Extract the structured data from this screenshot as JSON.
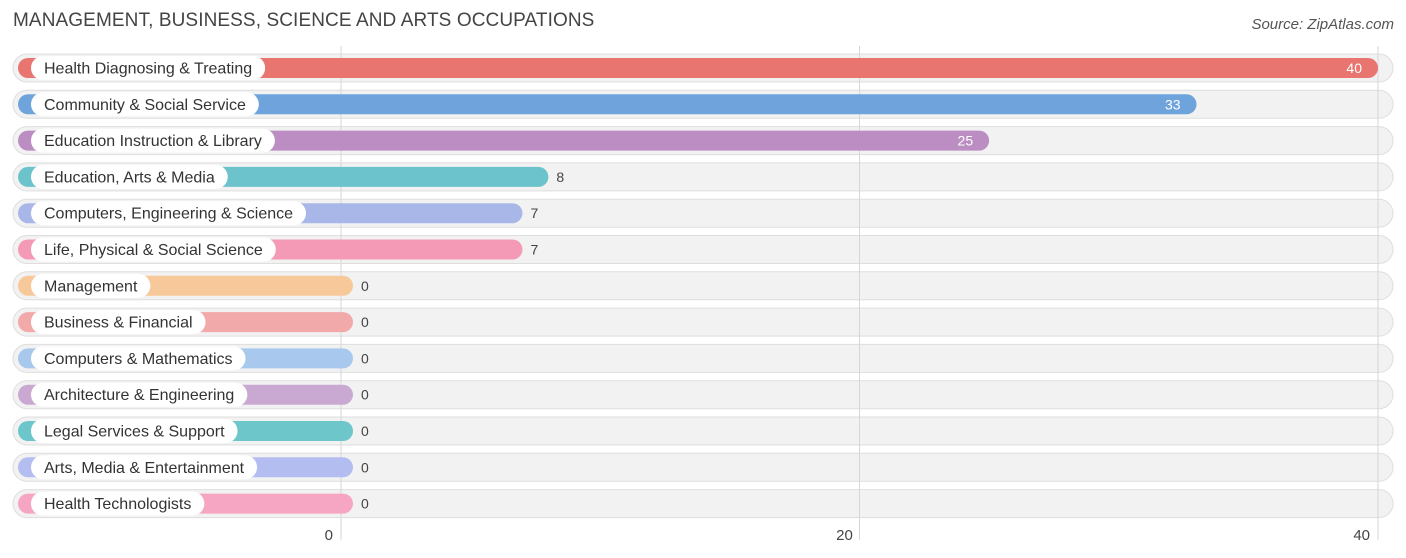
{
  "header": {
    "title": "MANAGEMENT, BUSINESS, SCIENCE AND ARTS OCCUPATIONS",
    "source": "Source: ZipAtlas.com"
  },
  "chart_data": {
    "type": "bar",
    "orientation": "horizontal",
    "title": "MANAGEMENT, BUSINESS, SCIENCE AND ARTS OCCUPATIONS",
    "xlim": [
      0,
      40
    ],
    "xticks": [
      "0",
      "20",
      "40"
    ],
    "grid": true,
    "categories": [
      "Health Diagnosing & Treating",
      "Community & Social Service",
      "Education Instruction & Library",
      "Education, Arts & Media",
      "Computers, Engineering & Science",
      "Life, Physical & Social Science",
      "Management",
      "Business & Financial",
      "Computers & Mathematics",
      "Architecture & Engineering",
      "Legal Services & Support",
      "Arts, Media & Entertainment",
      "Health Technologists"
    ],
    "values": [
      40,
      33,
      25,
      8,
      7,
      7,
      0,
      0,
      0,
      0,
      0,
      0,
      0
    ],
    "colors": [
      "#e8756f",
      "#6fa3dc",
      "#bb8dc2",
      "#6dc3cc",
      "#a9b7e8",
      "#f49ab6",
      "#f7c89a",
      "#f2a9a9",
      "#a8c8ee",
      "#c9a9d2",
      "#6dc6c9",
      "#b4bdf0",
      "#f6a6c2"
    ]
  }
}
